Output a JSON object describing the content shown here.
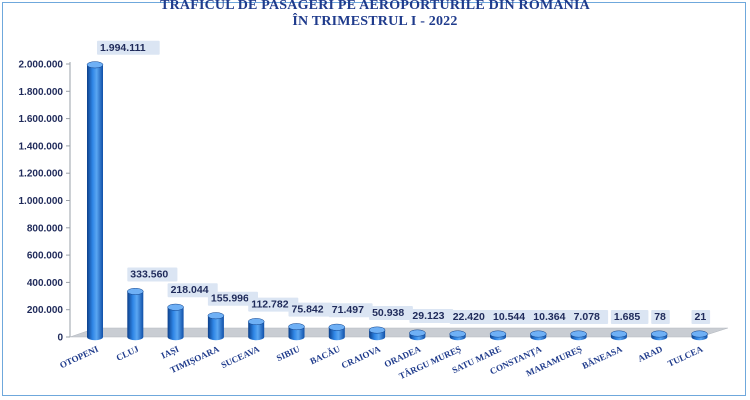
{
  "chart_data": {
    "type": "bar",
    "title": "TRAFICUL DE PASAGERI PE AEROPORTURILE DIN ROMANIA",
    "subtitle": "ÎN TRIMESTRUL I - 2022",
    "categories": [
      "OTOPENI",
      "CLUJ",
      "IAȘI",
      "TIMIȘOARA",
      "SUCEAVA",
      "SIBIU",
      "BACĂU",
      "CRAIOVA",
      "ORADEA",
      "TÂRGU MUREȘ",
      "SATU MARE",
      "CONSTANȚA",
      "MARAMUREȘ",
      "BĂNEASA",
      "ARAD",
      "TULCEA"
    ],
    "values": [
      1994111,
      333560,
      218044,
      155996,
      112782,
      75842,
      71497,
      50938,
      29123,
      22420,
      10544,
      10364,
      7078,
      1685,
      78,
      21
    ],
    "value_labels": [
      "1.994.111",
      "333.560",
      "218.044",
      "155.996",
      "112.782",
      "75.842",
      "71.497",
      "50.938",
      "29.123",
      "22.420",
      "10.544",
      "10.364",
      "7.078",
      "1.685",
      "78",
      "21"
    ],
    "y_ticks": [
      0,
      200000,
      400000,
      600000,
      800000,
      1000000,
      1200000,
      1400000,
      1600000,
      1800000,
      2000000
    ],
    "y_tick_labels": [
      "0",
      "200.000",
      "400.000",
      "600.000",
      "800.000",
      "1.000.000",
      "1.200.000",
      "1.400.000",
      "1.600.000",
      "1.800.000",
      "2.000.000"
    ],
    "ylim": [
      0,
      2000000
    ],
    "grid": false,
    "legend": "none",
    "colors": {
      "bar": "#1f6fd1",
      "bar_dark": "#0c3f8a",
      "bar_light": "#6fb0f5",
      "floor": "#c9cdd3",
      "label_bg": "#dbe5f3",
      "title": "#1f3b8c"
    }
  }
}
